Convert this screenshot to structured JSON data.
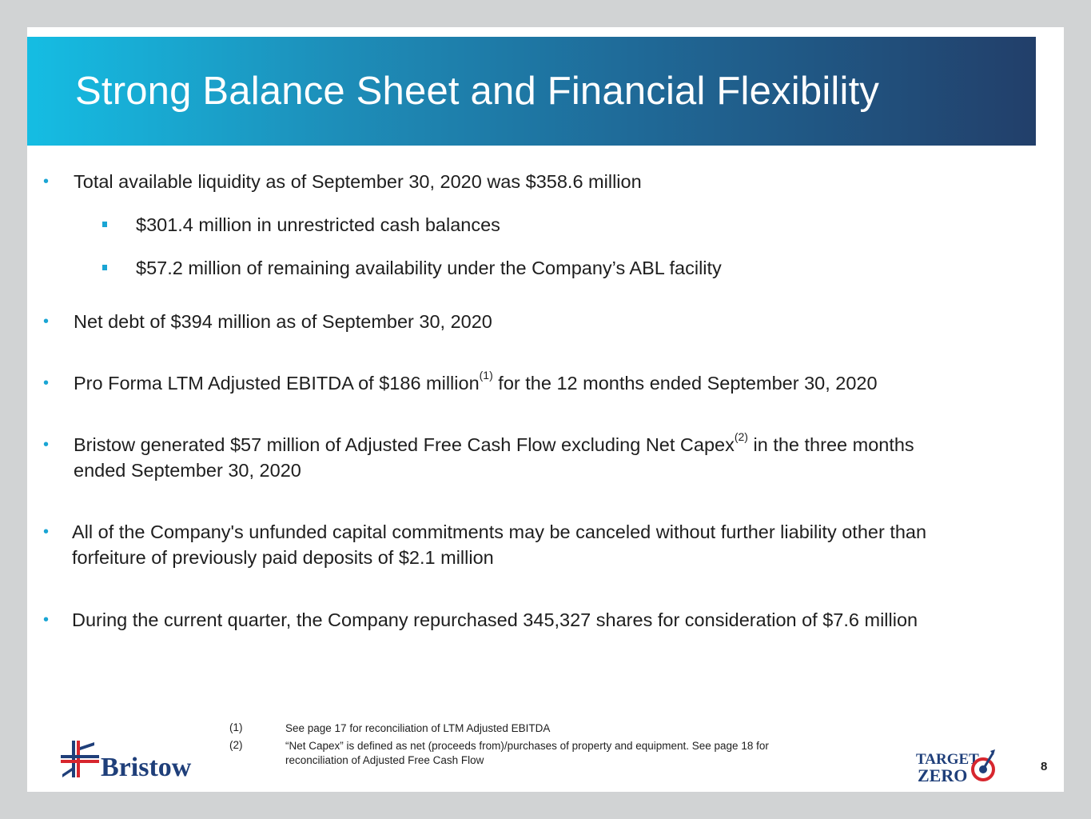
{
  "slide": {
    "title": "Strong Balance Sheet and Financial Flexibility",
    "page_number": "8",
    "bullets": [
      {
        "text": "Total available liquidity as of September 30, 2020 was $358.6 million"
      },
      {
        "text": "$301.4 million in unrestricted cash balances"
      },
      {
        "text": "$57.2 million of remaining availability under the Company’s ABL facility"
      },
      {
        "text": "Net debt of $394 million as of September 30, 2020"
      },
      {
        "pre": "Pro Forma LTM Adjusted EBITDA of $186 million",
        "sup": "(1)",
        "post": " for the 12 months ended September 30, 2020"
      },
      {
        "pre": "Bristow generated $57 million of Adjusted Free Cash Flow excluding Net Capex",
        "sup": "(2)",
        "post": " in the three months",
        "line2": "ended September 30, 2020"
      },
      {
        "line1": "All of the Company's unfunded capital commitments may be canceled without further liability other than",
        "line2": "forfeiture of previously paid deposits of $2.1 million"
      },
      {
        "text": "During the current quarter, the Company repurchased 345,327 shares for consideration of $7.6 million"
      }
    ],
    "footnotes": [
      {
        "num": "(1)",
        "text": "See page 17 for reconciliation of LTM Adjusted EBITDA"
      },
      {
        "num": "(2)",
        "line1": "“Net Capex” is defined as net (proceeds from)/purchases of property and equipment. See page 18 for",
        "line2": "reconciliation of Adjusted Free Cash Flow"
      }
    ],
    "logos": {
      "company": "Bristow",
      "program_line1": "TARGET",
      "program_line2": "ZERO"
    }
  },
  "colors": {
    "accent": "#1aa5d4",
    "logo_blue": "#1f3f7a",
    "logo_red": "#d7262e"
  }
}
